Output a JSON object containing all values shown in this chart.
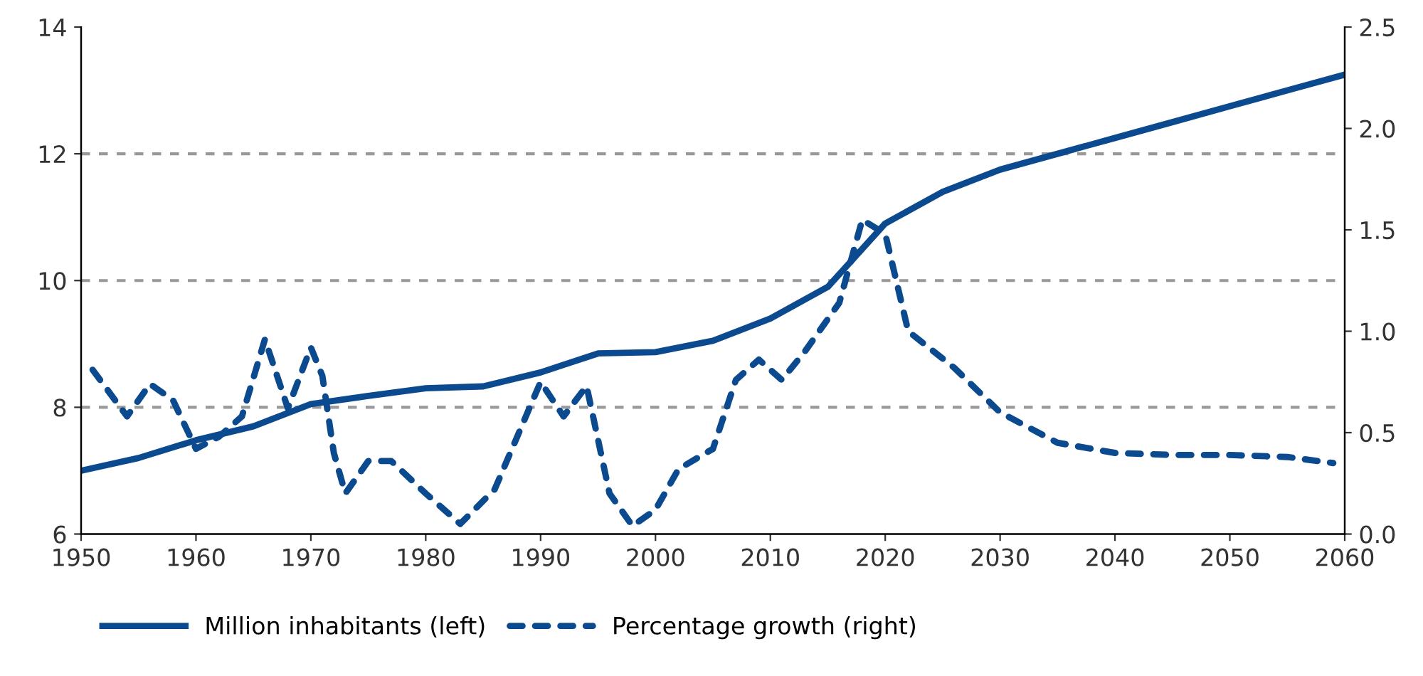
{
  "chart_data": {
    "type": "line",
    "xlim": [
      1950,
      2060
    ],
    "xticks": [
      1950,
      1960,
      1970,
      1980,
      1990,
      2000,
      2010,
      2020,
      2030,
      2040,
      2050,
      2060
    ],
    "ylim": [
      6,
      14
    ],
    "yticks": [
      6,
      8,
      10,
      12,
      14
    ],
    "y2lim": [
      0,
      2.5
    ],
    "y2ticks": [
      {
        "value": 0,
        "label": "0.0"
      },
      {
        "value": 0.5,
        "label": "0.5"
      },
      {
        "value": 1,
        "label": "1.0"
      },
      {
        "value": 1.5,
        "label": "1.5"
      },
      {
        "value": 2,
        "label": "2.0"
      },
      {
        "value": 2.5,
        "label": "2.5"
      }
    ],
    "grid": "y",
    "legend": "bottom",
    "series": [
      {
        "name": "Million inhabitants (left)",
        "color": "#0b4a8f",
        "line_style": "solid",
        "x": [
          1950,
          1955,
          1960,
          1965,
          1970,
          1975,
          1980,
          1985,
          1990,
          1995,
          2000,
          2005,
          2010,
          2015,
          2018,
          2020,
          2025,
          2030,
          2035,
          2040,
          2045,
          2050,
          2055,
          2060
        ],
        "values": [
          7.0,
          7.2,
          7.48,
          7.7,
          8.05,
          8.18,
          8.3,
          8.33,
          8.55,
          8.85,
          8.87,
          9.05,
          9.4,
          9.9,
          10.5,
          10.9,
          11.4,
          11.75,
          12.0,
          12.25,
          12.5,
          12.75,
          13.0,
          13.25
        ]
      },
      {
        "name": "Percentage growth (right)",
        "color": "#0b4a8f",
        "line_style": "dashed",
        "axis": "y2",
        "x": [
          1951,
          1954,
          1956,
          1958,
          1960,
          1962,
          1964,
          1966,
          1968,
          1970,
          1971,
          1972,
          1973,
          1975,
          1977,
          1980,
          1983,
          1986,
          1990,
          1992,
          1994,
          1996,
          1998,
          2000,
          2002,
          2005,
          2007,
          2009,
          2011,
          2013,
          2016,
          2018,
          2020,
          2022,
          2026,
          2030,
          2035,
          2040,
          2045,
          2050,
          2055,
          2059
        ],
        "values": [
          0.81,
          0.58,
          0.74,
          0.66,
          0.42,
          0.48,
          0.58,
          0.96,
          0.62,
          0.92,
          0.78,
          0.4,
          0.2,
          0.36,
          0.36,
          0.2,
          0.05,
          0.22,
          0.75,
          0.58,
          0.73,
          0.2,
          0.04,
          0.12,
          0.32,
          0.42,
          0.76,
          0.86,
          0.76,
          0.9,
          1.14,
          1.55,
          1.48,
          1.0,
          0.82,
          0.6,
          0.45,
          0.4,
          0.39,
          0.39,
          0.38,
          0.35
        ]
      }
    ]
  }
}
